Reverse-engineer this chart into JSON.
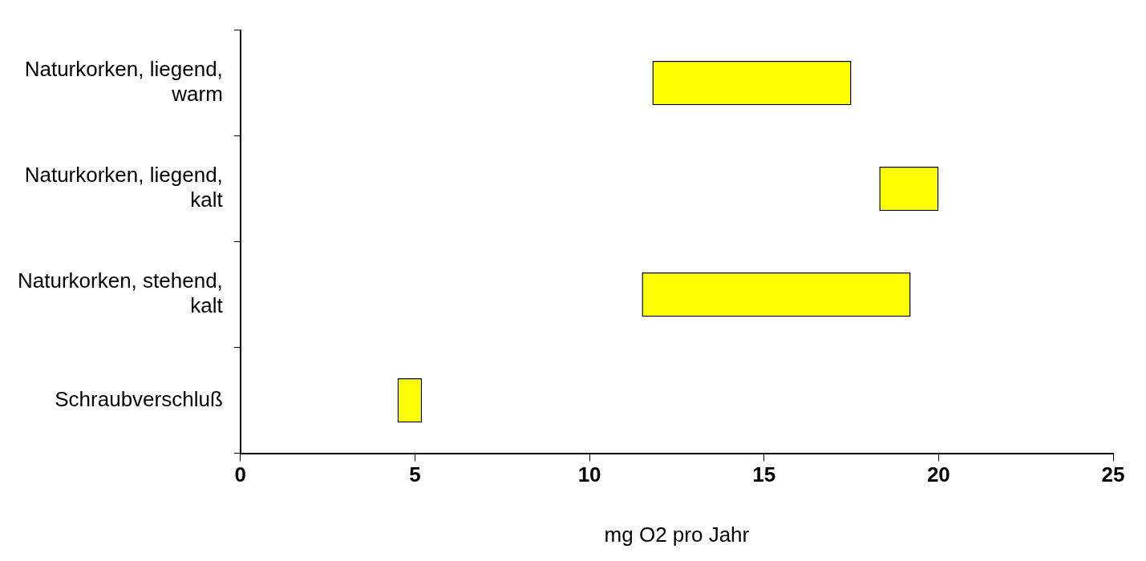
{
  "chart_data": {
    "type": "bar",
    "orientation": "horizontal",
    "xlabel": "mg O2 pro Jahr",
    "categories": [
      "Naturkorken, liegend, warm",
      "Naturkorken, liegend, kalt",
      "Naturkorken, stehend, kalt",
      "Schraubverschluß"
    ],
    "base": [
      11.8,
      18.3,
      11.5,
      4.5
    ],
    "values": [
      5.7,
      1.7,
      7.7,
      0.7
    ],
    "color": "#ffff00",
    "xlim": [
      0,
      25
    ],
    "xticks": [
      0,
      5,
      10,
      15,
      20,
      25
    ],
    "grid": false,
    "legend": false
  }
}
